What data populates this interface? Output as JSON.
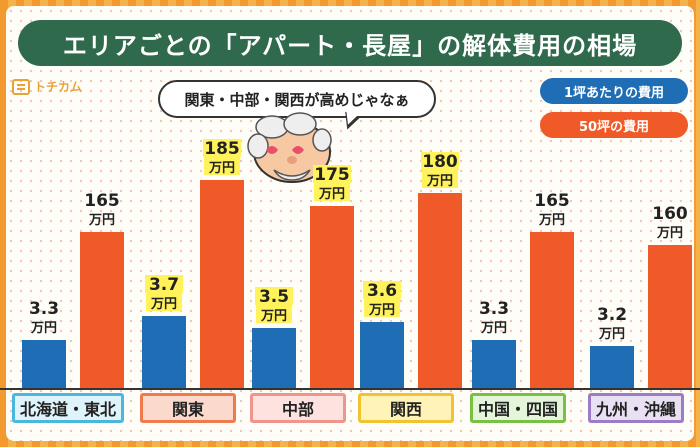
{
  "title": "エリアごとの「アパート・長屋」の解体費用の相場",
  "logo_text": "トチカム",
  "bubble_text": "関東・中部・関西が高めじゃなぁ",
  "legend": [
    {
      "label": "1坪あたりの費用",
      "color": "#1f6db5"
    },
    {
      "label": "50坪の費用",
      "color": "#f05a28"
    }
  ],
  "unit_label": "万円",
  "label_colors": [
    {
      "bg": "#dff3fb",
      "border": "#4bb6e0"
    },
    {
      "bg": "#fbd9cd",
      "border": "#ef7b4d"
    },
    {
      "bg": "#fde2e0",
      "border": "#f0958b"
    },
    {
      "bg": "#fff3b8",
      "border": "#f1c232"
    },
    {
      "bg": "#e4f5da",
      "border": "#79c043"
    },
    {
      "bg": "#e9e0f4",
      "border": "#9b7cc6"
    }
  ],
  "chart_data": {
    "type": "bar",
    "categories": [
      "北海道・東北",
      "関東",
      "中部",
      "関西",
      "中国・四国",
      "九州・沖縄"
    ],
    "series": [
      {
        "name": "1坪あたりの費用",
        "values": [
          3.3,
          3.7,
          3.5,
          3.6,
          3.3,
          3.2
        ]
      },
      {
        "name": "50坪の費用",
        "values": [
          165,
          185,
          175,
          180,
          165,
          160
        ]
      }
    ],
    "highlight": [
      1,
      2,
      3
    ]
  }
}
